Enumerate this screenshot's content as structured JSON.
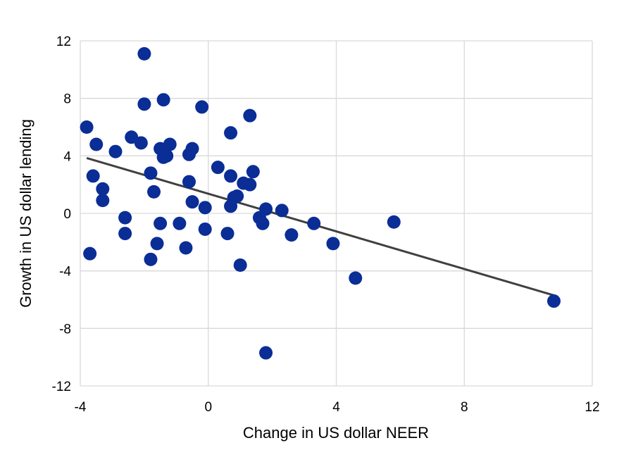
{
  "chart_data": {
    "type": "scatter",
    "xlabel": "Change in US dollar NEER",
    "ylabel": "Growth in US dollar lending",
    "xlim": [
      -4,
      12
    ],
    "ylim": [
      -12,
      12
    ],
    "x_ticks": [
      -4,
      0,
      4,
      8,
      12
    ],
    "y_ticks": [
      -12,
      -8,
      -4,
      0,
      4,
      8,
      12
    ],
    "grid": true,
    "legend": "none",
    "colors": {
      "points": "#0a2d96",
      "trendline": "#404040",
      "grid": "#d9d9d9"
    },
    "points": [
      {
        "x": -2.0,
        "y": 11.1
      },
      {
        "x": -1.4,
        "y": 7.9
      },
      {
        "x": -2.0,
        "y": 7.6
      },
      {
        "x": -0.2,
        "y": 7.4
      },
      {
        "x": 1.3,
        "y": 6.8
      },
      {
        "x": -3.8,
        "y": 6.0
      },
      {
        "x": 0.7,
        "y": 5.6
      },
      {
        "x": -2.4,
        "y": 5.3
      },
      {
        "x": -2.1,
        "y": 4.9
      },
      {
        "x": -3.5,
        "y": 4.8
      },
      {
        "x": -1.2,
        "y": 4.8
      },
      {
        "x": -1.5,
        "y": 4.5
      },
      {
        "x": -0.5,
        "y": 4.5
      },
      {
        "x": -2.9,
        "y": 4.3
      },
      {
        "x": -0.6,
        "y": 4.1
      },
      {
        "x": -1.3,
        "y": 4.0
      },
      {
        "x": -1.4,
        "y": 3.9
      },
      {
        "x": 0.3,
        "y": 3.2
      },
      {
        "x": 1.4,
        "y": 2.9
      },
      {
        "x": -1.8,
        "y": 2.8
      },
      {
        "x": -3.6,
        "y": 2.6
      },
      {
        "x": 0.7,
        "y": 2.6
      },
      {
        "x": -0.6,
        "y": 2.2
      },
      {
        "x": 1.1,
        "y": 2.1
      },
      {
        "x": 1.3,
        "y": 2.0
      },
      {
        "x": -3.3,
        "y": 1.7
      },
      {
        "x": -1.7,
        "y": 1.5
      },
      {
        "x": 0.9,
        "y": 1.2
      },
      {
        "x": 0.8,
        "y": 1.1
      },
      {
        "x": -3.3,
        "y": 0.9
      },
      {
        "x": -0.5,
        "y": 0.8
      },
      {
        "x": 0.7,
        "y": 0.5
      },
      {
        "x": -0.1,
        "y": 0.4
      },
      {
        "x": 1.8,
        "y": 0.3
      },
      {
        "x": 2.3,
        "y": 0.2
      },
      {
        "x": -2.6,
        "y": -0.3
      },
      {
        "x": 1.6,
        "y": -0.3
      },
      {
        "x": -1.5,
        "y": -0.7
      },
      {
        "x": -0.9,
        "y": -0.7
      },
      {
        "x": 1.7,
        "y": -0.7
      },
      {
        "x": 3.3,
        "y": -0.7
      },
      {
        "x": 5.8,
        "y": -0.6
      },
      {
        "x": -0.1,
        "y": -1.1
      },
      {
        "x": -2.6,
        "y": -1.4
      },
      {
        "x": 0.6,
        "y": -1.4
      },
      {
        "x": 2.6,
        "y": -1.5
      },
      {
        "x": -1.6,
        "y": -2.1
      },
      {
        "x": 3.9,
        "y": -2.1
      },
      {
        "x": -0.7,
        "y": -2.4
      },
      {
        "x": -3.7,
        "y": -2.8
      },
      {
        "x": -1.8,
        "y": -3.2
      },
      {
        "x": 1.0,
        "y": -3.6
      },
      {
        "x": 4.6,
        "y": -4.5
      },
      {
        "x": 10.8,
        "y": -6.1
      },
      {
        "x": 1.8,
        "y": -9.7
      }
    ],
    "trendline": {
      "x": [
        -3.8,
        10.8
      ],
      "y": [
        3.85,
        -5.7
      ]
    }
  }
}
